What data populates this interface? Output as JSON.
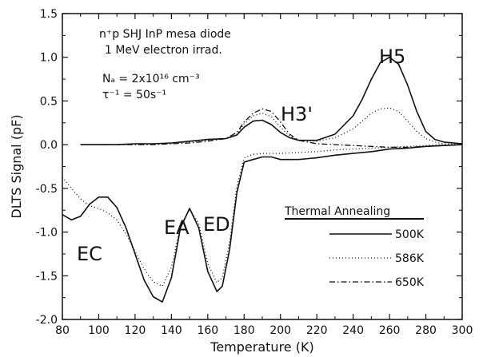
{
  "chart_data": {
    "type": "line",
    "xlabel": "Temperature (K)",
    "ylabel": "DLTS Signal (pF)",
    "xlim": [
      80,
      300
    ],
    "ylim": [
      -2.0,
      1.5
    ],
    "xticks": [
      80,
      100,
      120,
      140,
      160,
      180,
      200,
      220,
      240,
      260,
      280,
      300
    ],
    "xtick_labels": [
      "80",
      "100",
      "120",
      "140",
      "160",
      "180",
      "200",
      "220",
      "240",
      "260",
      "280",
      "300"
    ],
    "yticks": [
      -2.0,
      -1.5,
      -1.0,
      -0.5,
      0.0,
      0.5,
      1.0,
      1.5
    ],
    "ytick_labels": [
      "-2.0",
      "-1.5",
      "-1.0",
      "-0.5",
      "0.0",
      "0.5",
      "1.0",
      "1.5"
    ],
    "grid": false,
    "legend": {
      "title": "Thermal Annealing",
      "placement": "bottom-right",
      "entries": [
        "500K",
        "586K",
        "650K"
      ]
    },
    "annotations": {
      "sample_line1": "n⁺p SHJ InP mesa diode",
      "sample_line2": "1 MeV electron irrad.",
      "doping": "Nₐ = 2x10¹⁶ cm⁻³",
      "rate": "τ⁻¹ = 50s⁻¹",
      "peak_h3": "H3'",
      "peak_h5": "H5",
      "peak_ec": "EC",
      "peak_ea": "EA",
      "peak_ed": "ED"
    },
    "series": [
      {
        "name": "500K",
        "style": "solid",
        "x": [
          80,
          85,
          90,
          95,
          100,
          105,
          110,
          115,
          120,
          125,
          130,
          135,
          140,
          145,
          150,
          155,
          160,
          165,
          168,
          172,
          176,
          180,
          185,
          190,
          195,
          200,
          210,
          220,
          230,
          240,
          250,
          260,
          270,
          280,
          290,
          300
        ],
        "y": [
          -0.8,
          -0.86,
          -0.82,
          -0.68,
          -0.6,
          -0.6,
          -0.72,
          -0.95,
          -1.25,
          -1.55,
          -1.74,
          -1.8,
          -1.52,
          -0.95,
          -0.73,
          -0.95,
          -1.45,
          -1.68,
          -1.62,
          -1.2,
          -0.55,
          -0.2,
          -0.17,
          -0.14,
          -0.14,
          -0.17,
          -0.17,
          -0.15,
          -0.12,
          -0.1,
          -0.08,
          -0.05,
          -0.04,
          -0.02,
          -0.01,
          0.0
        ]
      },
      {
        "name": "586K",
        "style": "dotted",
        "x": [
          80,
          85,
          90,
          95,
          100,
          105,
          110,
          115,
          120,
          125,
          130,
          135,
          140,
          145,
          150,
          155,
          160,
          165,
          168,
          172,
          176,
          180,
          185,
          190,
          195,
          200,
          210,
          220,
          230,
          240,
          250,
          260,
          270,
          280,
          290,
          300
        ],
        "y": [
          -0.37,
          -0.5,
          -0.62,
          -0.7,
          -0.73,
          -0.78,
          -0.86,
          -1.02,
          -1.22,
          -1.42,
          -1.57,
          -1.62,
          -1.4,
          -0.93,
          -0.74,
          -0.9,
          -1.36,
          -1.58,
          -1.52,
          -1.12,
          -0.48,
          -0.15,
          -0.11,
          -0.1,
          -0.1,
          -0.1,
          -0.09,
          -0.08,
          -0.06,
          -0.05,
          -0.04,
          -0.03,
          -0.02,
          -0.01,
          0.0,
          0.0
        ]
      },
      {
        "name": "650K",
        "style": "dashdot",
        "x": [
          90,
          100,
          110,
          120,
          130,
          140,
          150,
          160,
          170,
          176,
          180,
          185,
          190,
          195,
          200,
          205,
          210,
          220,
          230,
          240,
          250,
          260,
          270,
          280,
          290,
          300
        ],
        "y": [
          0.0,
          0.0,
          0.0,
          0.0,
          0.0,
          0.01,
          0.02,
          0.04,
          0.07,
          0.14,
          0.26,
          0.36,
          0.41,
          0.38,
          0.26,
          0.12,
          0.05,
          0.01,
          0.0,
          -0.01,
          -0.02,
          -0.03,
          -0.03,
          -0.02,
          -0.01,
          0.0
        ]
      },
      {
        "name": "500K",
        "style": "solid",
        "x": [
          90,
          100,
          110,
          120,
          130,
          140,
          150,
          160,
          170,
          176,
          180,
          185,
          190,
          195,
          200,
          205,
          210,
          220,
          230,
          240,
          245,
          250,
          255,
          260,
          265,
          270,
          275,
          280,
          285,
          290,
          300
        ],
        "y": [
          0.0,
          0.0,
          0.0,
          0.01,
          0.01,
          0.02,
          0.04,
          0.06,
          0.07,
          0.11,
          0.2,
          0.27,
          0.28,
          0.23,
          0.14,
          0.08,
          0.05,
          0.05,
          0.12,
          0.33,
          0.52,
          0.75,
          0.94,
          1.0,
          0.92,
          0.68,
          0.38,
          0.15,
          0.06,
          0.03,
          0.01
        ]
      },
      {
        "name": "586K",
        "style": "dotted",
        "x": [
          90,
          100,
          110,
          120,
          130,
          140,
          150,
          160,
          170,
          176,
          180,
          185,
          190,
          195,
          200,
          205,
          210,
          220,
          230,
          240,
          245,
          250,
          255,
          260,
          265,
          270,
          275,
          280,
          285,
          290,
          300
        ],
        "y": [
          0.0,
          0.0,
          0.0,
          0.0,
          0.01,
          0.02,
          0.03,
          0.05,
          0.07,
          0.12,
          0.24,
          0.33,
          0.36,
          0.32,
          0.2,
          0.1,
          0.05,
          0.04,
          0.08,
          0.18,
          0.27,
          0.36,
          0.41,
          0.42,
          0.38,
          0.27,
          0.15,
          0.07,
          0.03,
          0.01,
          0.0
        ]
      }
    ]
  }
}
